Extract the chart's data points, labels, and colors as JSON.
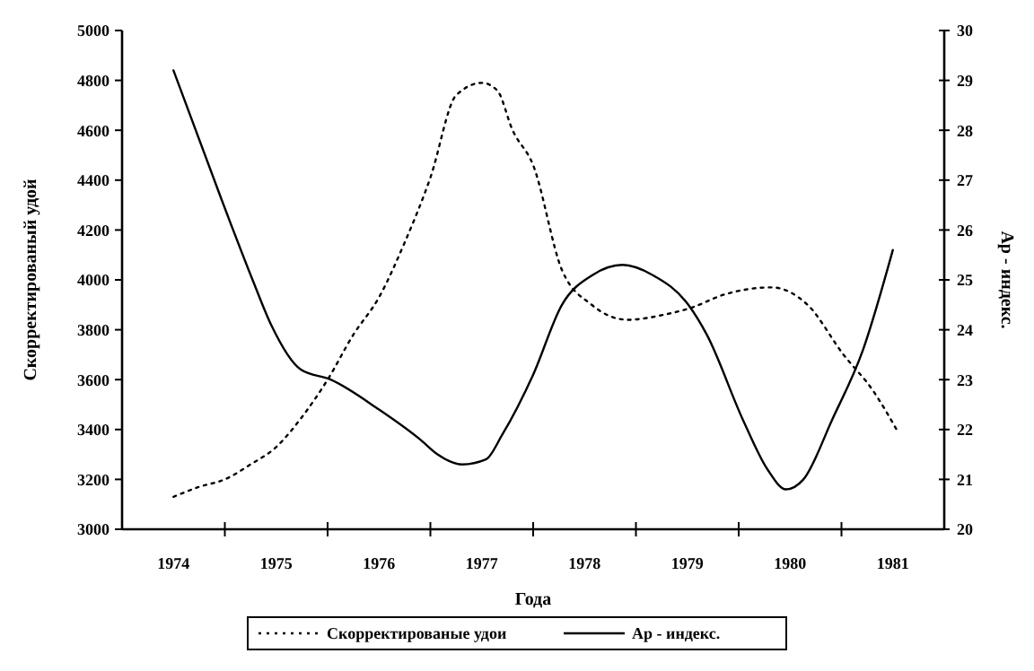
{
  "chart_data": {
    "type": "line",
    "xlabel": "Года",
    "ylabel": "Скорректированый удой",
    "y2label": "Ар - индекс.",
    "xlim": [
      1973.5,
      1981.5
    ],
    "xticks": [
      {
        "value": 1974,
        "label": "1974"
      },
      {
        "value": 1975,
        "label": "1975"
      },
      {
        "value": 1976,
        "label": "1976"
      },
      {
        "value": 1977,
        "label": "1977"
      },
      {
        "value": 1978,
        "label": "1978"
      },
      {
        "value": 1979,
        "label": "1979"
      },
      {
        "value": 1980,
        "label": "1980"
      },
      {
        "value": 1981,
        "label": "1981"
      },
      {
        "value": 1974.5,
        "label": null
      },
      {
        "value": 1975.5,
        "label": null
      },
      {
        "value": 1976.5,
        "label": null
      },
      {
        "value": 1977.5,
        "label": null
      },
      {
        "value": 1978.5,
        "label": null
      },
      {
        "value": 1979.5,
        "label": null
      },
      {
        "value": 1980.5,
        "label": null
      }
    ],
    "ylim": [
      3000,
      5000
    ],
    "yticks": [
      3000,
      3200,
      3400,
      3600,
      3800,
      4000,
      4200,
      4400,
      4600,
      4800,
      5000
    ],
    "y2lim": [
      20,
      30
    ],
    "y2ticks": [
      20,
      21,
      22,
      23,
      24,
      25,
      26,
      27,
      28,
      29,
      30
    ],
    "legend": "bottom",
    "grid": false,
    "series": [
      {
        "name": "Скорректированые удои",
        "color": "#000000",
        "line_style": "dotted",
        "x": [
          1974,
          1974.25,
          1974.5,
          1974.75,
          1975,
          1975.25,
          1975.5,
          1975.75,
          1976,
          1976.25,
          1976.5,
          1976.75,
          1977,
          1977.15,
          1977.3,
          1977.5,
          1977.78,
          1978.07,
          1978.42,
          1978.77,
          1979.05,
          1979.35,
          1979.82,
          1980.17,
          1980.52,
          1980.8,
          1981.05
        ],
        "values": [
          3130,
          3170,
          3200,
          3260,
          3330,
          3450,
          3600,
          3780,
          3930,
          4150,
          4410,
          4740,
          4790,
          4760,
          4600,
          4460,
          4040,
          3900,
          3840,
          3860,
          3890,
          3940,
          3970,
          3900,
          3700,
          3560,
          3390
        ]
      },
      {
        "name": "Ар - индекс.",
        "color": "#000000",
        "line_style": "solid",
        "axis": "y2",
        "x": [
          1974,
          1974.47,
          1974.77,
          1974.95,
          1975.24,
          1975.53,
          1976,
          1976.4,
          1976.57,
          1976.81,
          1977.04,
          1977.2,
          1977.5,
          1977.78,
          1978.08,
          1978.37,
          1978.66,
          1979.01,
          1979.19,
          1979.54,
          1979.78,
          1979.96,
          1980.13,
          1980.41,
          1980.71,
          1981
        ],
        "values": [
          29.2,
          26.6,
          25,
          24.1,
          23.2,
          23,
          22.4,
          21.8,
          21.5,
          21.3,
          21.4,
          21.9,
          23.1,
          24.5,
          25.1,
          25.3,
          25.1,
          24.5,
          23.9,
          22.2,
          21.2,
          20.8,
          21,
          22.2,
          23.6,
          25.6
        ]
      }
    ]
  }
}
